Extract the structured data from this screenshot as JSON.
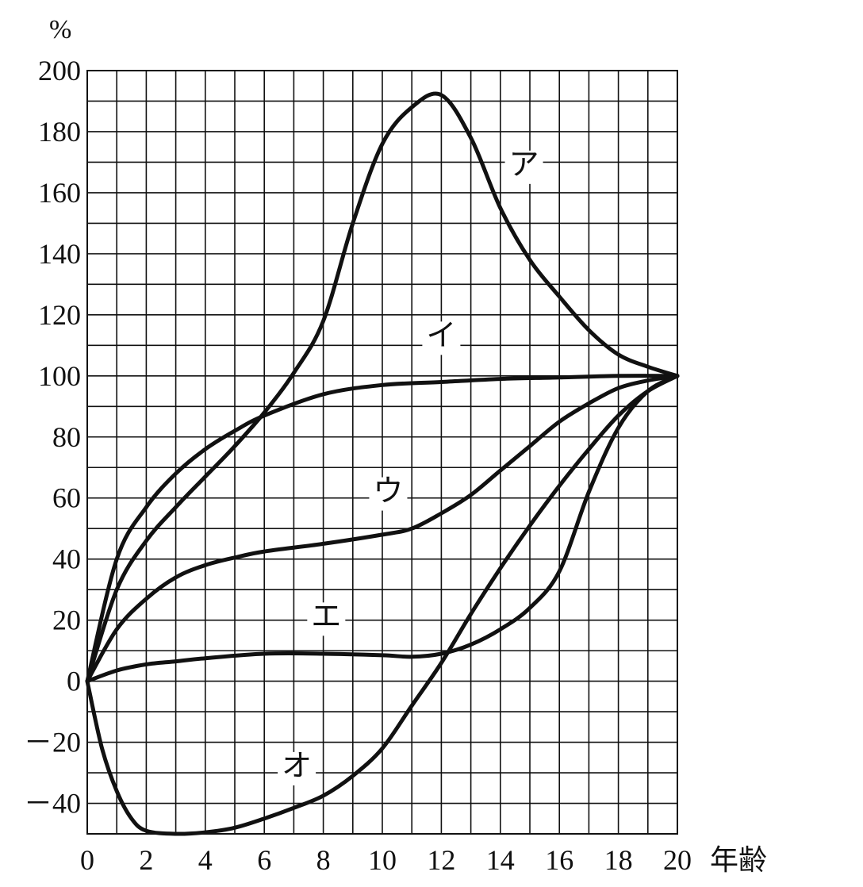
{
  "chart_data": {
    "type": "line",
    "title": "",
    "ylabel": "%",
    "xlabel": "年齢",
    "xlim": [
      0,
      20
    ],
    "ylim": [
      -50,
      200
    ],
    "x_ticks": [
      0,
      2,
      4,
      6,
      8,
      10,
      12,
      14,
      16,
      18,
      20
    ],
    "y_ticks": [
      200,
      180,
      160,
      140,
      120,
      100,
      80,
      60,
      40,
      20,
      0,
      -20,
      -40
    ],
    "y_tick_labels": [
      "200",
      "180",
      "160",
      "140",
      "120",
      "100",
      "80",
      "60",
      "40",
      "20",
      "0",
      "－20",
      "－40"
    ],
    "grid": true,
    "series": [
      {
        "name": "ア",
        "x": [
          0,
          1,
          2,
          3,
          4,
          5,
          6,
          7,
          8,
          9,
          10,
          11,
          12,
          13,
          14,
          15,
          16,
          17,
          18,
          19,
          20
        ],
        "y": [
          0,
          30,
          46,
          57,
          67,
          77,
          88,
          101,
          118,
          150,
          176,
          188,
          192,
          178,
          155,
          138,
          126,
          115,
          107,
          103,
          100
        ]
      },
      {
        "name": "イ",
        "x": [
          0,
          1,
          2,
          3,
          4,
          5,
          6,
          8,
          10,
          12,
          14,
          16,
          18,
          20
        ],
        "y": [
          0,
          40,
          57,
          68,
          76,
          82,
          87,
          94,
          97,
          98,
          99,
          99.5,
          100,
          100
        ]
      },
      {
        "name": "ウ",
        "x": [
          0,
          1,
          2,
          3,
          4,
          5,
          6,
          8,
          10,
          11,
          12,
          13,
          14,
          15,
          16,
          17,
          18,
          19,
          20
        ],
        "y": [
          0,
          17,
          27,
          34,
          38,
          40.5,
          42.5,
          45,
          48,
          50,
          55,
          61,
          69,
          77,
          85,
          91,
          96,
          98.5,
          100
        ]
      },
      {
        "name": "エ",
        "x": [
          0,
          1,
          2,
          3,
          4,
          6,
          8,
          10,
          11,
          12,
          13,
          14,
          15,
          16,
          17,
          18,
          19,
          20
        ],
        "y": [
          0,
          3.5,
          5.5,
          6.5,
          7.5,
          9,
          9,
          8.5,
          8,
          9,
          12,
          17,
          24,
          36,
          62,
          83,
          95,
          100
        ]
      },
      {
        "name": "オ",
        "x": [
          0,
          0.5,
          1,
          1.5,
          2,
          3,
          4,
          5,
          6,
          7,
          8,
          9,
          10,
          11,
          12,
          13,
          14,
          15,
          16,
          17,
          18,
          19,
          20
        ],
        "y": [
          0,
          -22,
          -36,
          -45,
          -49,
          -50,
          -49.5,
          -48,
          -45,
          -41.5,
          -37.5,
          -31,
          -22,
          -8,
          6,
          22,
          37,
          51,
          64,
          76,
          87,
          95,
          100
        ]
      }
    ],
    "series_label_text": [
      "ア",
      "イ",
      "ウ",
      "エ",
      "オ"
    ]
  }
}
